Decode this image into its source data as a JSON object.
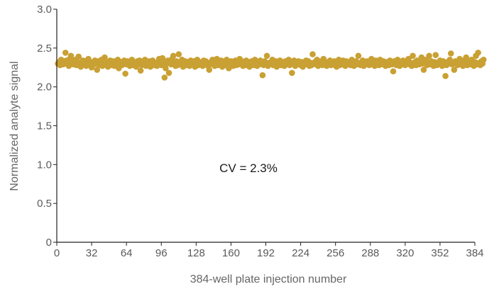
{
  "chart_data": {
    "type": "scatter",
    "xlabel": "384-well plate injection number",
    "ylabel": "Normalized analyte signal",
    "xlim": [
      0,
      384
    ],
    "ylim": [
      0,
      3.0
    ],
    "x_ticks": [
      0,
      32,
      64,
      96,
      128,
      160,
      192,
      224,
      256,
      288,
      320,
      352,
      384
    ],
    "x_tick_labels": [
      "0",
      "32",
      "64",
      "96",
      "128",
      "160",
      "192",
      "224",
      "256",
      "288",
      "320",
      "352",
      "384"
    ],
    "y_ticks": [
      0,
      0.5,
      1.0,
      1.5,
      2.0,
      2.5,
      3.0
    ],
    "y_tick_labels": [
      "0",
      "0.5",
      "1.0",
      "1.5",
      "2.0",
      "2.5",
      "3.0"
    ],
    "grid": false,
    "legend": "none",
    "annotation": "CV = 2.3%",
    "marker_color": "#c9a033",
    "axis_color": "#222222",
    "series": [
      {
        "x_start": 1,
        "x_step": 1,
        "y": [
          2.3,
          2.32,
          2.28,
          2.35,
          2.31,
          2.29,
          2.33,
          2.44,
          2.34,
          2.3,
          2.27,
          2.36,
          2.4,
          2.33,
          2.29,
          2.31,
          2.35,
          2.28,
          2.32,
          2.39,
          2.3,
          2.26,
          2.31,
          2.34,
          2.29,
          2.33,
          2.27,
          2.3,
          2.36,
          2.28,
          2.32,
          2.25,
          2.31,
          2.29,
          2.34,
          2.3,
          2.22,
          2.33,
          2.28,
          2.31,
          2.35,
          2.27,
          2.3,
          2.38,
          2.29,
          2.32,
          2.26,
          2.31,
          2.34,
          2.28,
          2.3,
          2.33,
          2.27,
          2.31,
          2.29,
          2.35,
          2.24,
          2.3,
          2.32,
          2.28,
          2.31,
          2.34,
          2.17,
          2.29,
          2.33,
          2.3,
          2.27,
          2.32,
          2.35,
          2.28,
          2.31,
          2.29,
          2.26,
          2.33,
          2.3,
          2.34,
          2.21,
          2.28,
          2.32,
          2.3,
          2.35,
          2.27,
          2.31,
          2.29,
          2.33,
          2.26,
          2.3,
          2.34,
          2.28,
          2.31,
          2.29,
          2.27,
          2.32,
          2.36,
          2.3,
          2.28,
          2.37,
          2.33,
          2.12,
          2.24,
          2.3,
          2.34,
          2.18,
          2.31,
          2.29,
          2.36,
          2.4,
          2.3,
          2.27,
          2.33,
          2.28,
          2.42,
          2.31,
          2.29,
          2.35,
          2.26,
          2.3,
          2.33,
          2.28,
          2.32,
          2.3,
          2.27,
          2.34,
          2.31,
          2.29,
          2.33,
          2.26,
          2.3,
          2.35,
          2.28,
          2.31,
          2.29,
          2.32,
          2.27,
          2.34,
          2.3,
          2.33,
          2.28,
          2.31,
          2.22,
          2.29,
          2.32,
          2.35,
          2.3,
          2.27,
          2.33,
          2.36,
          2.28,
          2.31,
          2.29,
          2.34,
          2.26,
          2.3,
          2.32,
          2.28,
          2.35,
          2.31,
          2.24,
          2.29,
          2.33,
          2.3,
          2.27,
          2.32,
          2.34,
          2.28,
          2.31,
          2.29,
          2.36,
          2.3,
          2.33,
          2.27,
          2.31,
          2.28,
          2.34,
          2.3,
          2.32,
          2.26,
          2.29,
          2.33,
          2.31,
          2.28,
          2.35,
          2.3,
          2.27,
          2.32,
          2.29,
          2.34,
          2.31,
          2.15,
          2.28,
          2.33,
          2.3,
          2.4,
          2.27,
          2.31,
          2.29,
          2.32,
          2.35,
          2.28,
          2.3,
          2.33,
          2.26,
          2.31,
          2.29,
          2.34,
          2.28,
          2.32,
          2.3,
          2.27,
          2.33,
          2.31,
          2.29,
          2.35,
          2.28,
          2.3,
          2.18,
          2.32,
          2.34,
          2.27,
          2.31,
          2.29,
          2.33,
          2.3,
          2.28,
          2.32,
          2.26,
          2.31,
          2.29,
          2.34,
          2.3,
          2.33,
          2.27,
          2.31,
          2.28,
          2.42,
          2.3,
          2.32,
          2.29,
          2.35,
          2.27,
          2.31,
          2.3,
          2.33,
          2.28,
          2.36,
          2.29,
          2.31,
          2.27,
          2.32,
          2.3,
          2.34,
          2.28,
          2.31,
          2.29,
          2.33,
          2.3,
          2.26,
          2.32,
          2.35,
          2.28,
          2.31,
          2.29,
          2.34,
          2.3,
          2.27,
          2.33,
          2.31,
          2.29,
          2.32,
          2.28,
          2.35,
          2.3,
          2.27,
          2.31,
          2.33,
          2.29,
          2.4,
          2.3,
          2.28,
          2.32,
          2.34,
          2.27,
          2.31,
          2.29,
          2.33,
          2.3,
          2.28,
          2.32,
          2.36,
          2.29,
          2.31,
          2.27,
          2.34,
          2.3,
          2.32,
          2.28,
          2.35,
          2.31,
          2.29,
          2.33,
          2.3,
          2.27,
          2.32,
          2.31,
          2.28,
          2.34,
          2.3,
          2.29,
          2.2,
          2.33,
          2.31,
          2.28,
          2.35,
          2.3,
          2.27,
          2.32,
          2.29,
          2.34,
          2.31,
          2.28,
          2.33,
          2.3,
          2.36,
          2.29,
          2.31,
          2.27,
          2.4,
          2.3,
          2.32,
          2.28,
          2.34,
          2.31,
          2.29,
          2.33,
          2.38,
          2.3,
          2.22,
          2.32,
          2.35,
          2.28,
          2.31,
          2.4,
          2.29,
          2.33,
          2.3,
          2.27,
          2.32,
          2.41,
          2.28,
          2.31,
          2.29,
          2.34,
          2.3,
          2.27,
          2.33,
          2.31,
          2.14,
          2.28,
          2.32,
          2.3,
          2.35,
          2.43,
          2.29,
          2.31,
          2.22,
          2.33,
          2.3,
          2.28,
          2.32,
          2.36,
          2.29,
          2.31,
          2.27,
          2.34,
          2.3,
          2.38,
          2.28,
          2.33,
          2.31,
          2.29,
          2.35,
          2.3,
          2.27,
          2.32,
          2.4,
          2.29,
          2.44,
          2.31,
          2.28,
          2.33,
          2.3,
          2.35
        ]
      }
    ]
  }
}
